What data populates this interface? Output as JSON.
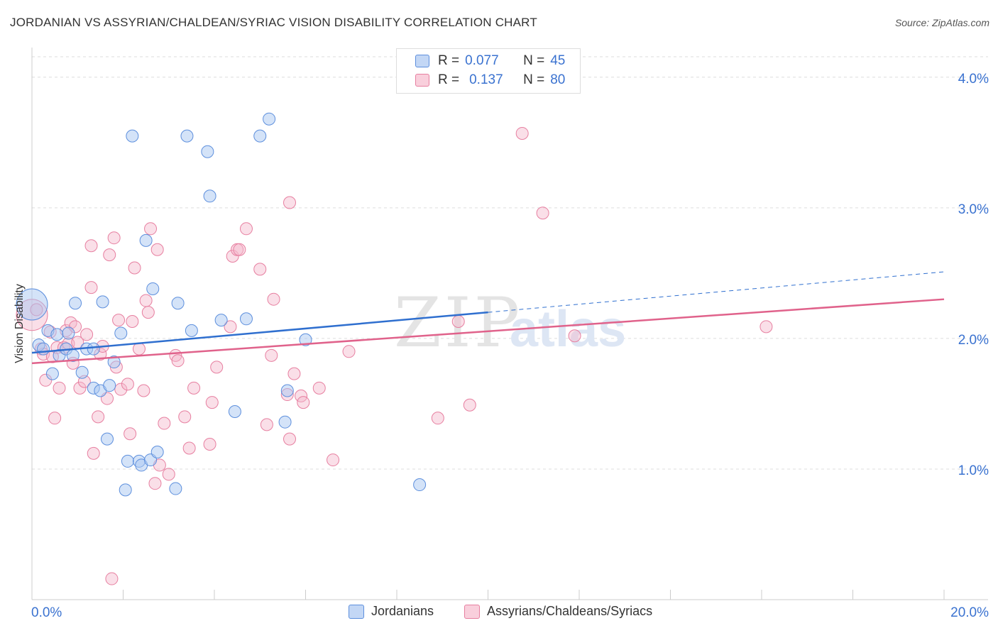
{
  "header": {
    "title": "JORDANIAN VS ASSYRIAN/CHALDEAN/SYRIAC VISION DISABILITY CORRELATION CHART",
    "source": "Source: ZipAtlas.com"
  },
  "legend_top": {
    "rows": [
      {
        "r_label": "R =",
        "r_value": "0.077",
        "n_label": "N =",
        "n_value": "45"
      },
      {
        "r_label": "R =",
        "r_value": "0.137",
        "n_label": "N =",
        "n_value": "80"
      }
    ]
  },
  "legend_bottom": {
    "items": [
      "Jordanians",
      "Assyrians/Chaldeans/Syriacs"
    ]
  },
  "watermark": {
    "zip": "ZIP",
    "atlas": "atlas"
  },
  "colors": {
    "blue_fill": "#a9c7f2",
    "blue_stroke": "#5d8fdd",
    "blue_line": "#2f6fcf",
    "pink_fill": "#f5b8cb",
    "pink_stroke": "#e77fa0",
    "pink_line": "#e0628b",
    "axis_text": "#3a72d0",
    "grid": "#dddddd"
  },
  "chart_data": {
    "type": "scatter",
    "title": "JORDANIAN VS ASSYRIAN/CHALDEAN/SYRIAC VISION DISABILITY CORRELATION CHART",
    "xlabel": "",
    "ylabel": "Vision Disability",
    "xlim": [
      0,
      20
    ],
    "ylim": [
      0,
      4.2
    ],
    "x_tick_labels": [
      "0.0%",
      "20.0%"
    ],
    "y_ticks": [
      1.0,
      2.0,
      3.0,
      4.0
    ],
    "y_tick_labels": [
      "1.0%",
      "2.0%",
      "3.0%",
      "4.0%"
    ],
    "grid": true,
    "legend_position": "top-center",
    "series": [
      {
        "name": "Jordanians",
        "color": "#5d8fdd",
        "r": "0.077",
        "n": "45",
        "trend": {
          "x0": 0.0,
          "y0": 1.89,
          "x1": 10.0,
          "y1": 2.2,
          "dashed_to": [
            20.0,
            2.51
          ]
        },
        "points": [
          [
            0.0,
            2.26,
            "big"
          ],
          [
            0.15,
            1.95
          ],
          [
            0.25,
            1.92
          ],
          [
            0.35,
            2.06
          ],
          [
            0.45,
            1.73
          ],
          [
            0.55,
            2.03
          ],
          [
            0.6,
            1.87
          ],
          [
            0.75,
            1.92
          ],
          [
            0.8,
            2.04
          ],
          [
            0.9,
            1.87
          ],
          [
            0.95,
            2.27
          ],
          [
            1.1,
            1.74
          ],
          [
            1.2,
            1.92
          ],
          [
            1.35,
            1.62
          ],
          [
            1.35,
            1.92
          ],
          [
            1.5,
            1.6
          ],
          [
            1.55,
            2.28
          ],
          [
            1.65,
            1.23
          ],
          [
            1.7,
            1.64
          ],
          [
            1.8,
            1.82
          ],
          [
            1.95,
            2.04
          ],
          [
            2.05,
            0.84
          ],
          [
            2.1,
            1.06
          ],
          [
            2.2,
            3.55
          ],
          [
            2.35,
            1.06
          ],
          [
            2.4,
            1.03
          ],
          [
            2.5,
            2.75
          ],
          [
            2.6,
            1.07
          ],
          [
            2.65,
            2.38
          ],
          [
            2.75,
            1.13
          ],
          [
            3.15,
            0.85
          ],
          [
            3.2,
            2.27
          ],
          [
            3.4,
            3.55
          ],
          [
            3.5,
            2.06
          ],
          [
            3.85,
            3.43
          ],
          [
            3.9,
            3.09
          ],
          [
            4.15,
            2.14
          ],
          [
            4.45,
            1.44
          ],
          [
            4.7,
            2.15
          ],
          [
            5.0,
            3.55
          ],
          [
            5.2,
            3.68
          ],
          [
            5.55,
            1.36
          ],
          [
            5.6,
            1.6
          ],
          [
            6.0,
            1.99
          ],
          [
            8.5,
            0.88
          ]
        ]
      },
      {
        "name": "Assyrians/Chaldeans/Syriacs",
        "color": "#e77fa0",
        "r": "0.137",
        "n": "80",
        "trend": {
          "x0": 0.0,
          "y0": 1.81,
          "x1": 20.0,
          "y1": 2.3
        },
        "points": [
          [
            0.0,
            2.18,
            "big"
          ],
          [
            0.1,
            2.22
          ],
          [
            0.2,
            1.92
          ],
          [
            0.25,
            1.88
          ],
          [
            0.3,
            1.68
          ],
          [
            0.4,
            2.05
          ],
          [
            0.45,
            1.86
          ],
          [
            0.55,
            1.93
          ],
          [
            0.5,
            1.39
          ],
          [
            0.6,
            1.62
          ],
          [
            0.7,
            1.93
          ],
          [
            0.75,
            2.06
          ],
          [
            0.8,
            1.96
          ],
          [
            0.85,
            2.12
          ],
          [
            0.9,
            1.81
          ],
          [
            0.95,
            2.09
          ],
          [
            1.0,
            1.97
          ],
          [
            1.05,
            1.62
          ],
          [
            1.15,
            1.67
          ],
          [
            1.2,
            2.03
          ],
          [
            1.3,
            2.71
          ],
          [
            1.3,
            2.39
          ],
          [
            1.35,
            1.12
          ],
          [
            1.45,
            1.4
          ],
          [
            1.5,
            1.88
          ],
          [
            1.55,
            1.94
          ],
          [
            1.65,
            1.54
          ],
          [
            1.7,
            2.64
          ],
          [
            1.75,
            0.16
          ],
          [
            1.8,
            2.77
          ],
          [
            1.85,
            1.78
          ],
          [
            1.9,
            2.14
          ],
          [
            1.95,
            1.61
          ],
          [
            2.1,
            1.65
          ],
          [
            2.15,
            1.27
          ],
          [
            2.2,
            2.13
          ],
          [
            2.25,
            2.54
          ],
          [
            2.35,
            1.92
          ],
          [
            2.5,
            2.29
          ],
          [
            2.55,
            2.2
          ],
          [
            2.6,
            2.84
          ],
          [
            2.7,
            0.89
          ],
          [
            2.75,
            2.68
          ],
          [
            2.8,
            1.03
          ],
          [
            2.9,
            1.35
          ],
          [
            3.0,
            0.96
          ],
          [
            3.15,
            1.87
          ],
          [
            3.2,
            1.83
          ],
          [
            3.35,
            1.4
          ],
          [
            3.45,
            1.16
          ],
          [
            3.55,
            1.62
          ],
          [
            3.9,
            1.19
          ],
          [
            3.95,
            1.51
          ],
          [
            4.05,
            1.78
          ],
          [
            4.35,
            2.09
          ],
          [
            4.4,
            2.63
          ],
          [
            4.5,
            2.68
          ],
          [
            4.55,
            2.68
          ],
          [
            4.7,
            2.84
          ],
          [
            5.0,
            2.53
          ],
          [
            5.15,
            1.34
          ],
          [
            5.25,
            1.87
          ],
          [
            5.3,
            2.3
          ],
          [
            5.6,
            1.57
          ],
          [
            5.65,
            1.23
          ],
          [
            5.65,
            3.04
          ],
          [
            5.75,
            1.73
          ],
          [
            5.9,
            1.56
          ],
          [
            5.95,
            1.51
          ],
          [
            6.3,
            1.62
          ],
          [
            6.6,
            1.07
          ],
          [
            6.95,
            1.9
          ],
          [
            8.9,
            1.39
          ],
          [
            9.35,
            2.13
          ],
          [
            9.6,
            1.49
          ],
          [
            10.75,
            3.57
          ],
          [
            11.2,
            2.96
          ],
          [
            11.9,
            2.02
          ],
          [
            16.1,
            2.09
          ],
          [
            2.45,
            1.6
          ]
        ]
      }
    ]
  }
}
